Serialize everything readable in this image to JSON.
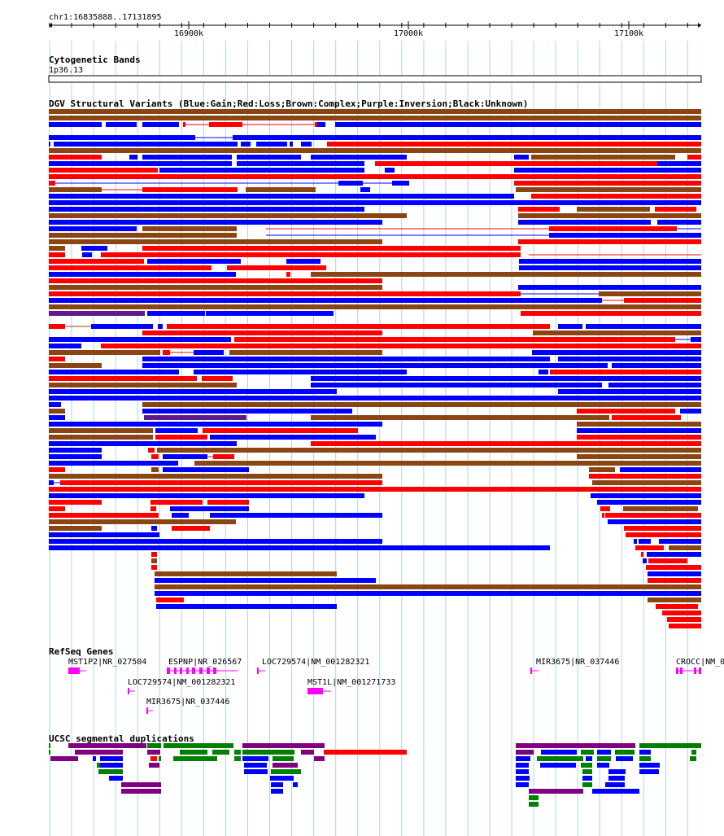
{
  "colors": {
    "gain": "#0000ff",
    "loss": "#ff0000",
    "complex": "#8b4513",
    "inversion": "#5c1a8a",
    "gene": "#ff00ff",
    "segdup_purple": "#800080",
    "segdup_green": "#008000",
    "segdup_blue": "#0000ff",
    "segdup_red": "#ff0000",
    "gridline": "#aad4ee"
  },
  "ruler": {
    "position_label": "chr1:16835888..17131895",
    "start": 16835888,
    "end": 17131895,
    "tick_labels": [
      {
        "pos": 16900000,
        "label": "16900k"
      },
      {
        "pos": 17000000,
        "label": "17000k"
      },
      {
        "pos": 17100000,
        "label": "17100k"
      }
    ]
  },
  "tracks": {
    "cytoband": {
      "title": "Cytogenetic Bands",
      "band_label": "1p36.13"
    },
    "dgv": {
      "title": "DGV Structural Variants (Blue:Gain;Red:Loss;Brown:Complex;Purple:Inversion;Black:Unknown)"
    },
    "refseq": {
      "title": "RefSeq Genes",
      "gene_labels": [
        "MST1P2|NR_027504",
        "ESPNP|NR_026567",
        "LOC729574|NM_001282321",
        "MIR3675|NR_037446",
        "CROCC|NM_0",
        "LOC729574|NM_001282321",
        "MST1L|NM_001271733",
        "MIR3675|NR_037446"
      ]
    },
    "segdup": {
      "title": "UCSC segmental duplications"
    }
  }
}
